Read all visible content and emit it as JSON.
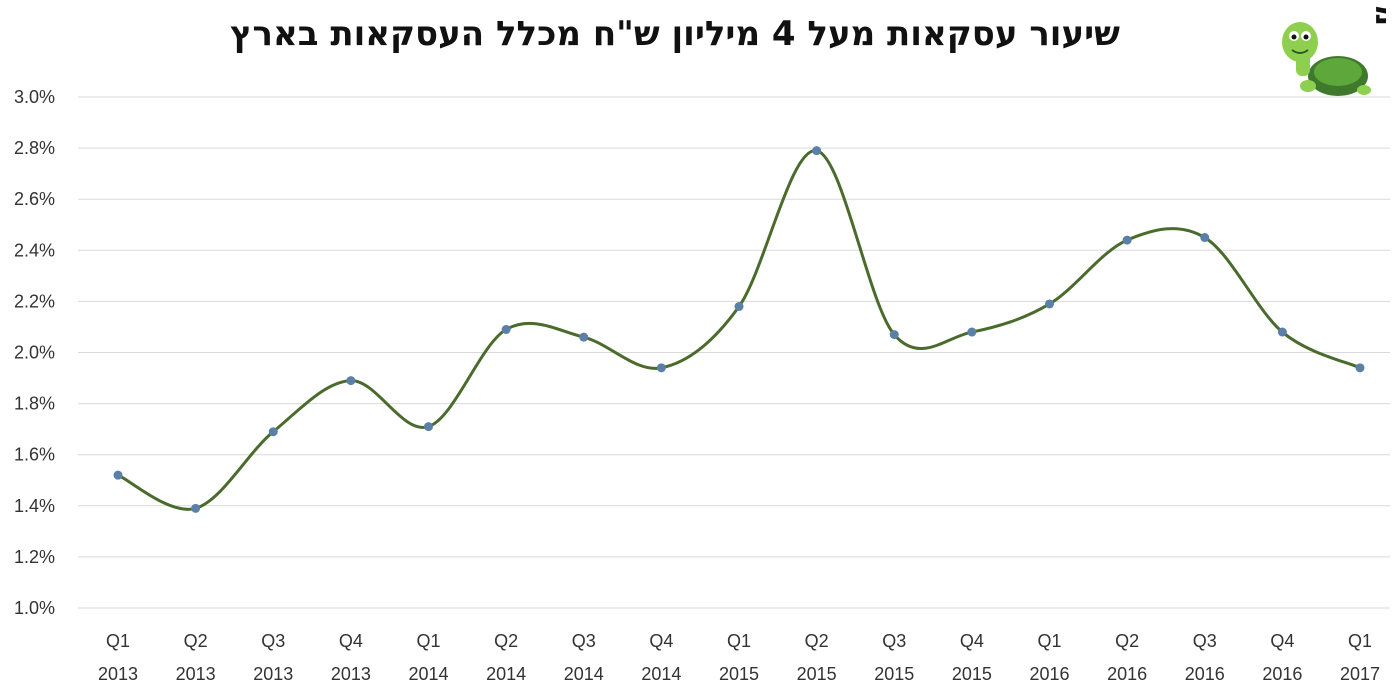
{
  "title": "שיעור עסקאות מעל 4 מיליון ש\"ח מכלל העסקאות בארץ",
  "logo": {
    "text": "מדלן",
    "icon": "turtle-icon"
  },
  "chart_data": {
    "type": "line",
    "title": "שיעור עסקאות מעל 4 מיליון ש\"ח מכלל העסקאות בארץ",
    "xlabel": "",
    "ylabel": "",
    "categories": [
      [
        "Q1",
        "2013"
      ],
      [
        "Q2",
        "2013"
      ],
      [
        "Q3",
        "2013"
      ],
      [
        "Q4",
        "2013"
      ],
      [
        "Q1",
        "2014"
      ],
      [
        "Q2",
        "2014"
      ],
      [
        "Q3",
        "2014"
      ],
      [
        "Q4",
        "2014"
      ],
      [
        "Q1",
        "2015"
      ],
      [
        "Q2",
        "2015"
      ],
      [
        "Q3",
        "2015"
      ],
      [
        "Q4",
        "2015"
      ],
      [
        "Q1",
        "2016"
      ],
      [
        "Q2",
        "2016"
      ],
      [
        "Q3",
        "2016"
      ],
      [
        "Q4",
        "2016"
      ],
      [
        "Q1",
        "2017"
      ]
    ],
    "series": [
      {
        "values": [
          1.52,
          1.39,
          1.69,
          1.89,
          1.71,
          2.09,
          2.06,
          1.94,
          2.18,
          2.79,
          2.07,
          2.08,
          2.19,
          2.44,
          2.45,
          2.08,
          1.94
        ]
      }
    ],
    "ylim": [
      1.0,
      3.0
    ],
    "yticks": [
      "1.0%",
      "1.2%",
      "1.4%",
      "1.6%",
      "1.8%",
      "2.0%",
      "2.2%",
      "2.4%",
      "2.6%",
      "2.8%",
      "3.0%"
    ],
    "grid": true,
    "smooth": true,
    "colors": {
      "line": "#4a6b2c",
      "marker": "#5b80a8",
      "grid": "#d9d9d9"
    }
  }
}
